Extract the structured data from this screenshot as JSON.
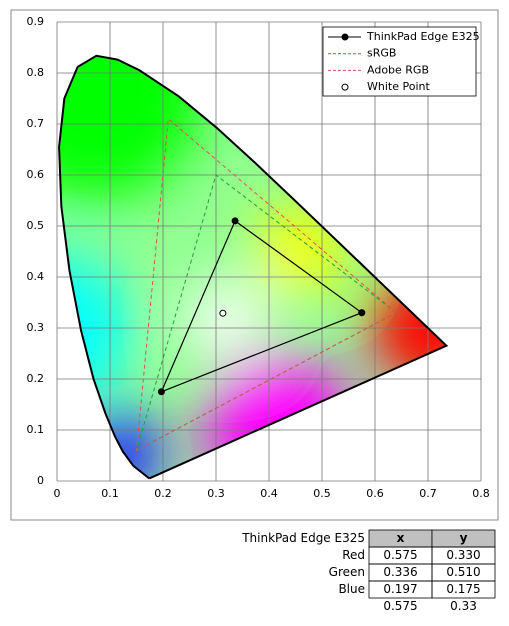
{
  "chart_data": {
    "type": "scatter",
    "xlim": [
      0,
      0.8
    ],
    "ylim": [
      0,
      0.9
    ],
    "xticks": [
      0,
      0.1,
      0.2,
      0.3,
      0.4,
      0.5,
      0.6,
      0.7,
      0.8
    ],
    "yticks": [
      0,
      0.1,
      0.2,
      0.3,
      0.4,
      0.5,
      0.6,
      0.7,
      0.8,
      0.9
    ],
    "grid": true,
    "legend": "upper right",
    "locus": {
      "x": [
        0.1741,
        0.144,
        0.1241,
        0.1096,
        0.0913,
        0.0687,
        0.0454,
        0.0235,
        0.0082,
        0.0039,
        0.0139,
        0.0389,
        0.0743,
        0.1142,
        0.1547,
        0.2296,
        0.3016,
        0.3731,
        0.4441,
        0.5125,
        0.5752,
        0.627,
        0.6915,
        0.7347,
        0.1741
      ],
      "y": [
        0.005,
        0.0297,
        0.0578,
        0.0868,
        0.1327,
        0.2007,
        0.295,
        0.4127,
        0.5384,
        0.6548,
        0.7502,
        0.812,
        0.8338,
        0.8262,
        0.8059,
        0.7543,
        0.6923,
        0.6245,
        0.5547,
        0.4866,
        0.4242,
        0.3725,
        0.3083,
        0.2653,
        0.005
      ]
    },
    "series": [
      {
        "name": "ThinkPad Edge E325",
        "color": "#000000",
        "line": "solid",
        "marker": "filled",
        "x": [
          0.575,
          0.336,
          0.197,
          0.575
        ],
        "y": [
          0.33,
          0.51,
          0.175,
          0.33
        ]
      },
      {
        "name": "sRGB",
        "color": "#22a040",
        "line": "dashed",
        "marker": "none",
        "x": [
          0.64,
          0.3,
          0.15,
          0.64
        ],
        "y": [
          0.33,
          0.6,
          0.06,
          0.33
        ]
      },
      {
        "name": "Adobe RGB",
        "color": "#e05050",
        "line": "dashed",
        "marker": "none",
        "x": [
          0.64,
          0.21,
          0.15,
          0.64
        ],
        "y": [
          0.33,
          0.71,
          0.06,
          0.33
        ]
      },
      {
        "name": "White Point",
        "color": "#000000",
        "line": "none",
        "marker": "open",
        "x": [
          0.313
        ],
        "y": [
          0.329
        ]
      }
    ]
  },
  "table": {
    "title": "ThinkPad Edge E325",
    "columns": [
      "x",
      "y"
    ],
    "rows": [
      [
        "Red",
        "0.575",
        "0.330"
      ],
      [
        "Green",
        "0.336",
        "0.510"
      ],
      [
        "Blue",
        "0.197",
        "0.175"
      ],
      [
        null,
        "0.575",
        "0.33"
      ]
    ]
  }
}
